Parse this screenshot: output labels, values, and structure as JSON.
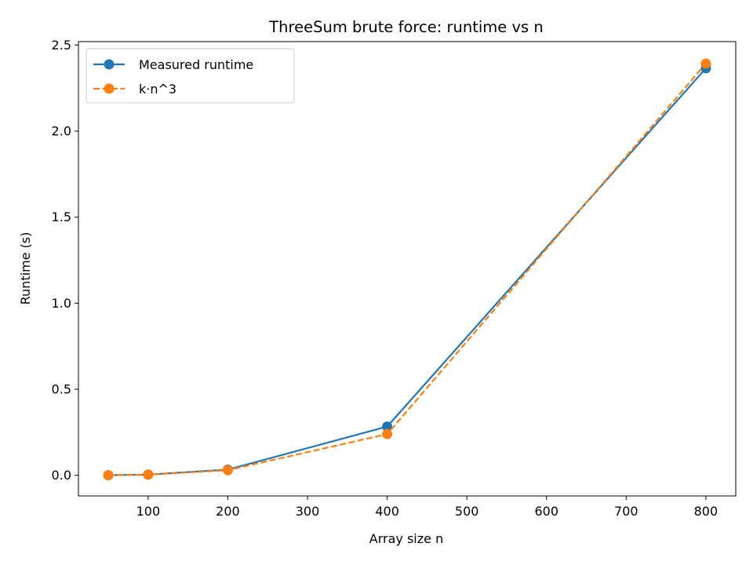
{
  "chart_data": {
    "type": "line",
    "title": "ThreeSum brute force: runtime vs n",
    "xlabel": "Array size n",
    "ylabel": "Runtime (s)",
    "x": [
      50,
      100,
      200,
      400,
      800
    ],
    "xlim": [
      12.5,
      837.5
    ],
    "ylim": [
      -0.12,
      2.52
    ],
    "xticks": [
      100,
      200,
      300,
      400,
      500,
      600,
      700,
      800
    ],
    "xtick_labels": [
      "100",
      "200",
      "300",
      "400",
      "500",
      "600",
      "700",
      "800"
    ],
    "yticks": [
      0.0,
      0.5,
      1.0,
      1.5,
      2.0,
      2.5
    ],
    "ytick_labels": [
      "0.0",
      "0.5",
      "1.0",
      "1.5",
      "2.0",
      "2.5"
    ],
    "grid": false,
    "legend_position": "top-left",
    "series": [
      {
        "name": "Measured runtime",
        "values": [
          0.0005,
          0.004,
          0.033,
          0.283,
          2.365
        ],
        "color": "#1f77b4",
        "line_style": "solid",
        "marker": "circle"
      },
      {
        "name": "k·n^3",
        "values": [
          0.0005,
          0.0037,
          0.0299,
          0.2395,
          2.392
        ],
        "color": "#ff7f0e",
        "line_style": "dashed",
        "marker": "circle"
      }
    ]
  }
}
